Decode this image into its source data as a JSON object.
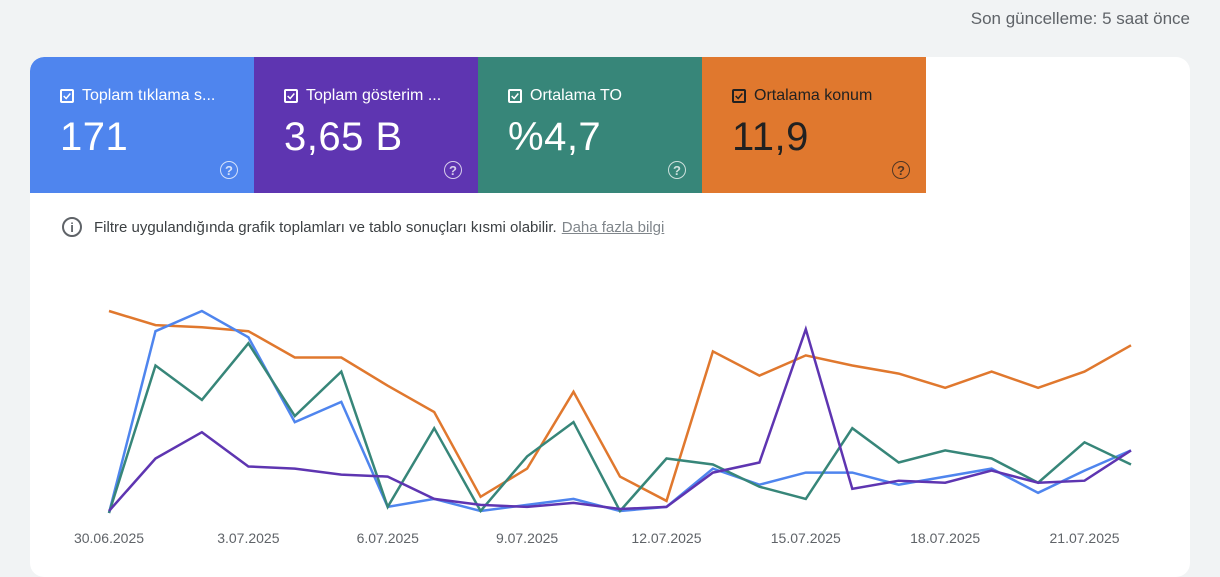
{
  "header": {
    "last_update": "Son güncelleme: 5 saat önce"
  },
  "metrics": [
    {
      "label": "Toplam tıklama s...",
      "value": "171",
      "color": "#4f85ee"
    },
    {
      "label": "Toplam gösterim ...",
      "value": "3,65 B",
      "color": "#5e35b1"
    },
    {
      "label": "Ortalama TO",
      "value": "%4,7",
      "color": "#378679"
    },
    {
      "label": "Ortalama konum",
      "value": "11,9",
      "color": "#e0782e"
    }
  ],
  "notice": {
    "text": "Filtre uygulandığında grafik toplamları ve tablo sonuçları kısmi olabilir.",
    "link": "Daha fazla bilgi"
  },
  "chart_data": {
    "type": "line",
    "x": [
      "30.06.2025",
      "1.07.2025",
      "2.07.2025",
      "3.07.2025",
      "4.07.2025",
      "5.07.2025",
      "6.07.2025",
      "7.07.2025",
      "8.07.2025",
      "9.07.2025",
      "10.07.2025",
      "11.07.2025",
      "12.07.2025",
      "13.07.2025",
      "14.07.2025",
      "15.07.2025",
      "16.07.2025",
      "17.07.2025",
      "18.07.2025",
      "19.07.2025",
      "20.07.2025",
      "21.07.2025",
      "22.07.2025"
    ],
    "tick_labels": [
      "30.06.2025",
      "3.07.2025",
      "6.07.2025",
      "9.07.2025",
      "12.07.2025",
      "15.07.2025",
      "18.07.2025",
      "21.07.2025"
    ],
    "tick_indices": [
      0,
      3,
      6,
      9,
      12,
      15,
      18,
      21
    ],
    "series": [
      {
        "color": "#e0782e",
        "values": [
          0.0,
          0.07,
          0.08,
          0.1,
          0.23,
          0.23,
          0.37,
          0.5,
          0.92,
          0.78,
          0.4,
          0.82,
          0.94,
          0.2,
          0.32,
          0.22,
          0.27,
          0.31,
          0.38,
          0.3,
          0.38,
          0.3,
          0.17
        ]
      },
      {
        "color": "#4f85ee",
        "values": [
          1.0,
          0.1,
          0.0,
          0.13,
          0.55,
          0.45,
          0.97,
          0.93,
          0.99,
          0.96,
          0.93,
          0.99,
          0.97,
          0.78,
          0.86,
          0.8,
          0.8,
          0.86,
          0.82,
          0.78,
          0.9,
          0.79,
          0.69
        ]
      },
      {
        "color": "#378679",
        "values": [
          1.0,
          0.27,
          0.44,
          0.16,
          0.52,
          0.3,
          0.97,
          0.58,
          0.99,
          0.72,
          0.55,
          0.99,
          0.73,
          0.76,
          0.87,
          0.93,
          0.58,
          0.75,
          0.69,
          0.73,
          0.85,
          0.65,
          0.76
        ]
      },
      {
        "color": "#5e35b1",
        "values": [
          0.99,
          0.73,
          0.6,
          0.77,
          0.78,
          0.81,
          0.82,
          0.93,
          0.96,
          0.97,
          0.95,
          0.98,
          0.97,
          0.8,
          0.75,
          0.09,
          0.88,
          0.84,
          0.85,
          0.79,
          0.85,
          0.84,
          0.69
        ]
      }
    ],
    "grid": false,
    "legend": "none"
  }
}
